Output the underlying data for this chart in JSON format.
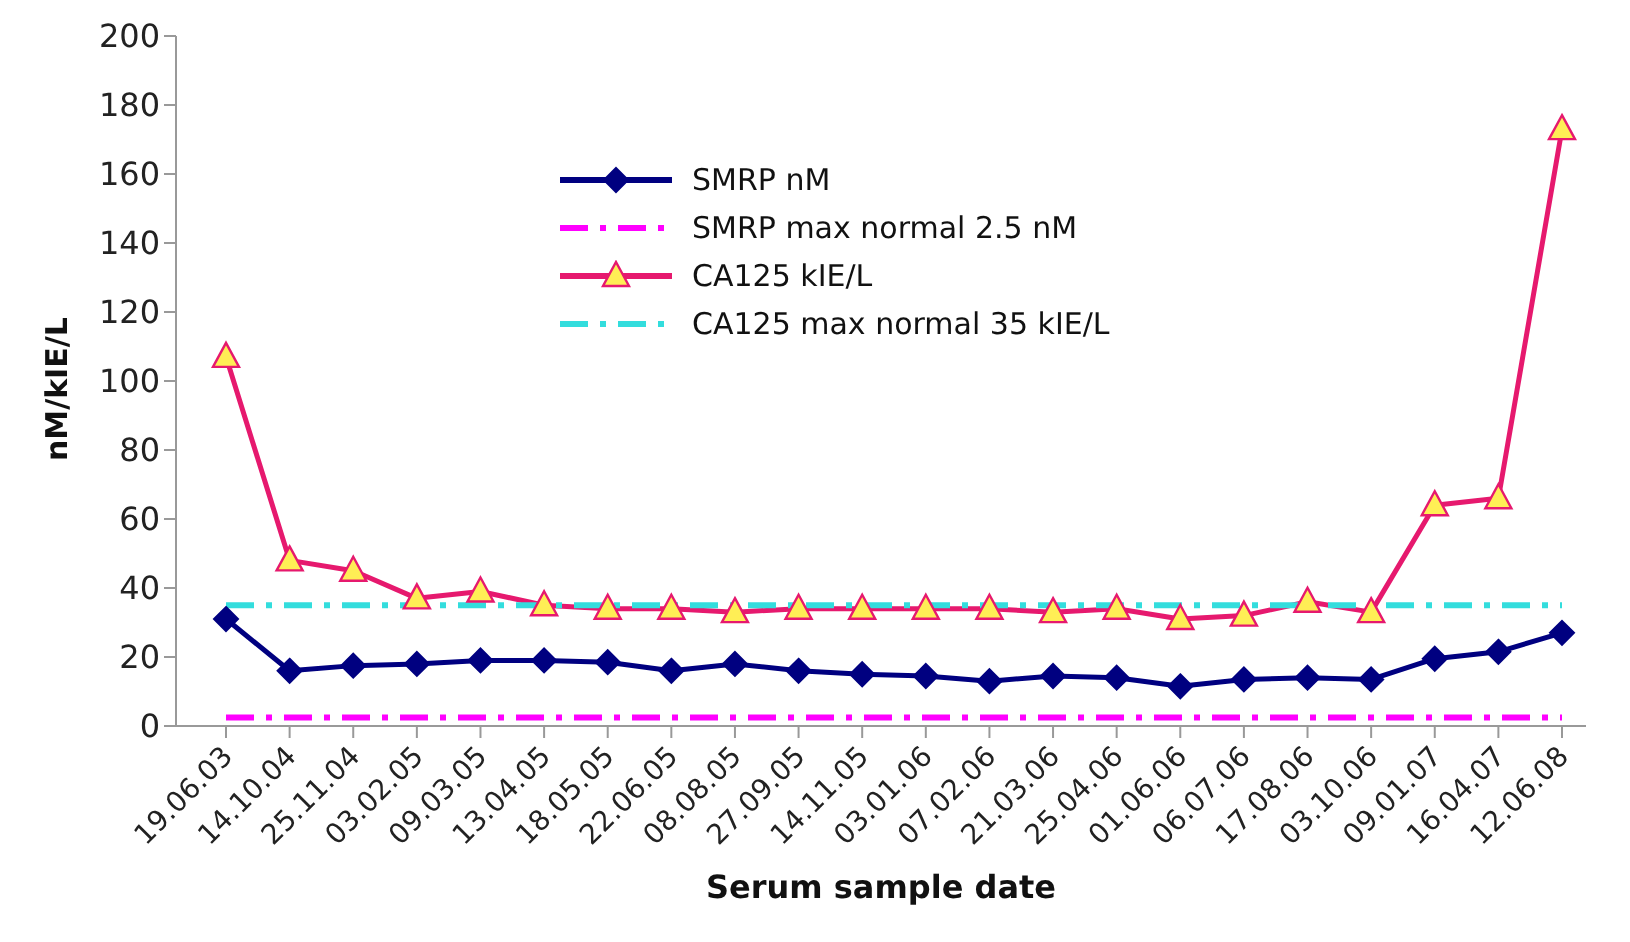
{
  "chart_data": {
    "type": "line",
    "xlabel": "Serum sample date",
    "ylabel": "nM/kIE/L",
    "categories": [
      "19.06.03",
      "14.10.04",
      "25.11.04",
      "03.02.05",
      "09.03.05",
      "13.04.05",
      "18.05.05",
      "22.06.05",
      "08.08.05",
      "27.09.05",
      "14.11.05",
      "03.01.06",
      "07.02.06",
      "21.03.06",
      "25.04.06",
      "01.06.06",
      "06.07.06",
      "17.08.06",
      "03.10.06",
      "09.01.07",
      "16.04.07",
      "12.06.08"
    ],
    "series": [
      {
        "name": "SMRP nM",
        "color": "#000080",
        "marker": "diamond",
        "line_style": "solid",
        "values": [
          31,
          16,
          17.5,
          18,
          19,
          19,
          18.5,
          16,
          18,
          16,
          15,
          14.5,
          13,
          14.5,
          14,
          11.5,
          13.5,
          14,
          13.5,
          19.5,
          21.5,
          27
        ]
      },
      {
        "name": "SMRP max normal 2.5 nM",
        "color": "#ff00ff",
        "marker": "none",
        "line_style": "dashed",
        "values": [
          2.5,
          2.5,
          2.5,
          2.5,
          2.5,
          2.5,
          2.5,
          2.5,
          2.5,
          2.5,
          2.5,
          2.5,
          2.5,
          2.5,
          2.5,
          2.5,
          2.5,
          2.5,
          2.5,
          2.5,
          2.5,
          2.5
        ]
      },
      {
        "name": "CA125 kIE/L",
        "color": "#e6196e",
        "marker": "triangle",
        "line_style": "solid",
        "values": [
          107,
          48,
          45,
          37,
          39,
          35,
          34,
          34,
          33,
          34,
          34,
          34,
          34,
          33,
          34,
          31,
          32,
          36,
          33,
          64,
          66,
          173
        ]
      },
      {
        "name": "CA125 max normal 35 kIE/L",
        "color": "#33dddd",
        "marker": "none",
        "line_style": "dashed",
        "values": [
          35,
          35,
          35,
          35,
          35,
          35,
          35,
          35,
          35,
          35,
          35,
          35,
          35,
          35,
          35,
          35,
          35,
          35,
          35,
          35,
          35,
          35
        ]
      }
    ],
    "ylim": [
      0,
      200
    ],
    "yticks": [
      0,
      20,
      40,
      60,
      80,
      100,
      120,
      140,
      160,
      180,
      200
    ],
    "grid": false,
    "legend": "top"
  }
}
